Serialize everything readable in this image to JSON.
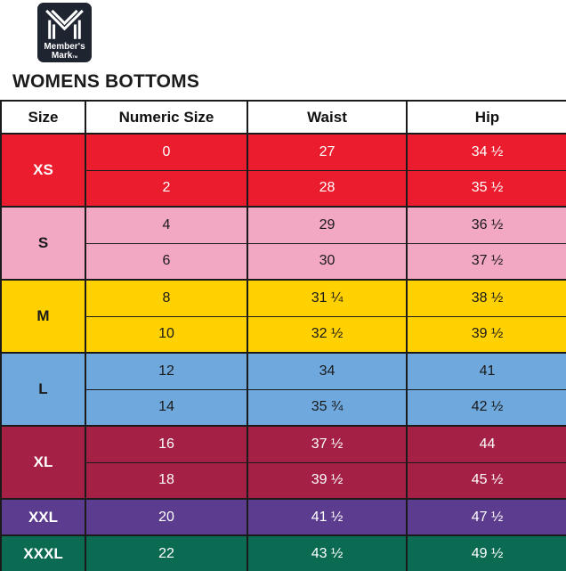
{
  "logo": {
    "name_line1": "Member's",
    "name_line2": "Mark",
    "trademark": "TM"
  },
  "title": "WOMENS BOTTOMS",
  "theme": {
    "logo_bg": "#1E2531",
    "border": "#1a1a1a",
    "header_bg": "#FFFFFF",
    "header_text": "#111111"
  },
  "table": {
    "headers": [
      "Size",
      "Numeric Size",
      "Waist",
      "Hip"
    ],
    "groups": [
      {
        "size": "XS",
        "bg": "#EB1C2D",
        "text": "#FFFFFF",
        "rows": [
          [
            "0",
            "27",
            "34 ½"
          ],
          [
            "2",
            "28",
            "35 ½"
          ]
        ]
      },
      {
        "size": "S",
        "bg": "#F2A7C3",
        "text": "#1A1A1A",
        "rows": [
          [
            "4",
            "29",
            "36 ½"
          ],
          [
            "6",
            "30",
            "37 ½"
          ]
        ]
      },
      {
        "size": "M",
        "bg": "#FFD100",
        "text": "#1A1A1A",
        "rows": [
          [
            "8",
            "31 ¼",
            "38 ½"
          ],
          [
            "10",
            "32 ½",
            "39 ½"
          ]
        ]
      },
      {
        "size": "L",
        "bg": "#6FA8DC",
        "text": "#1A1A1A",
        "rows": [
          [
            "12",
            "34",
            "41"
          ],
          [
            "14",
            "35 ¾",
            "42 ½"
          ]
        ]
      },
      {
        "size": "XL",
        "bg": "#A42044",
        "text": "#FFFFFF",
        "rows": [
          [
            "16",
            "37 ½",
            "44"
          ],
          [
            "18",
            "39 ½",
            "45 ½"
          ]
        ]
      },
      {
        "size": "XXL",
        "bg": "#5B3C8E",
        "text": "#FFFFFF",
        "rows": [
          [
            "20",
            "41 ½",
            "47 ½"
          ]
        ]
      },
      {
        "size": "XXXL",
        "bg": "#0B6A52",
        "text": "#FFFFFF",
        "rows": [
          [
            "22",
            "43 ½",
            "49 ½"
          ]
        ]
      }
    ]
  }
}
